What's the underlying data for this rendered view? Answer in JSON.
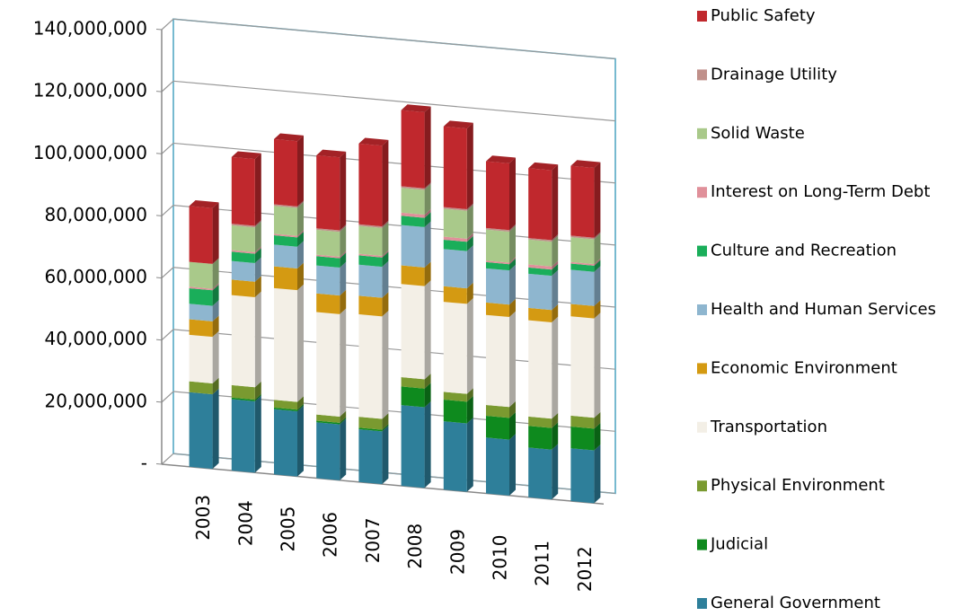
{
  "chart_data": {
    "type": "stacked_bar_3d",
    "categories": [
      "2003",
      "2004",
      "2005",
      "2006",
      "2007",
      "2008",
      "2009",
      "2010",
      "2011",
      "2012"
    ],
    "ylim": [
      0,
      140000000
    ],
    "yticks": [
      {
        "value": 0,
        "label": "-"
      },
      {
        "value": 20000000,
        "label": "20,000,000"
      },
      {
        "value": 40000000,
        "label": "40,000,000"
      },
      {
        "value": 60000000,
        "label": "60,000,000"
      },
      {
        "value": 80000000,
        "label": "80,000,000"
      },
      {
        "value": 100000000,
        "label": "100,000,000"
      },
      {
        "value": 120000000,
        "label": "120,000,000"
      },
      {
        "value": 140000000,
        "label": "140,000,000"
      }
    ],
    "grid": true,
    "legend": "right",
    "series": [
      {
        "name": "General Government",
        "color": "#2e7f9a",
        "values": [
          24000000,
          23000000,
          21000000,
          18000000,
          17000000,
          26000000,
          22000000,
          18000000,
          16000000,
          17000000
        ]
      },
      {
        "name": "Judicial",
        "color": "#0e8a1e",
        "values": [
          0,
          500000,
          500000,
          500000,
          500000,
          6000000,
          7000000,
          7000000,
          7000000,
          7000000
        ]
      },
      {
        "name": "Physical Environment",
        "color": "#7a9a30",
        "values": [
          3500000,
          4000000,
          2500000,
          2000000,
          3500000,
          3000000,
          2500000,
          3500000,
          3000000,
          3500000
        ]
      },
      {
        "name": "Transportation",
        "color": "#f3efe6",
        "values": [
          15000000,
          29000000,
          36000000,
          33000000,
          33000000,
          30000000,
          29000000,
          29000000,
          31000000,
          32000000
        ]
      },
      {
        "name": "Economic Environment",
        "color": "#d49a12",
        "values": [
          5000000,
          5000000,
          7000000,
          6000000,
          6000000,
          6000000,
          5000000,
          4000000,
          4000000,
          4000000
        ]
      },
      {
        "name": "Health and Human Services",
        "color": "#8eb6cf",
        "values": [
          5000000,
          6000000,
          7000000,
          9000000,
          10000000,
          13000000,
          12000000,
          11000000,
          11000000,
          11000000
        ]
      },
      {
        "name": "Culture and Recreation",
        "color": "#1aae5a",
        "values": [
          5000000,
          3000000,
          3000000,
          3000000,
          3000000,
          3000000,
          3000000,
          2000000,
          2000000,
          2000000
        ]
      },
      {
        "name": "Interest on Long-Term Debt",
        "color": "#e0909a",
        "values": [
          500000,
          500000,
          500000,
          500000,
          500000,
          1000000,
          1000000,
          500000,
          1000000,
          500000
        ]
      },
      {
        "name": "Solid Waste",
        "color": "#a9c98a",
        "values": [
          8000000,
          8000000,
          9000000,
          8000000,
          9000000,
          8000000,
          9000000,
          10000000,
          8000000,
          8000000
        ]
      },
      {
        "name": "Drainage Utility",
        "color": "#c0908a",
        "values": [
          0,
          500000,
          500000,
          500000,
          500000,
          500000,
          500000,
          500000,
          500000,
          500000
        ]
      },
      {
        "name": "Public Safety",
        "color": "#c0282d",
        "values": [
          18000000,
          21500000,
          21000000,
          23500000,
          26000000,
          24500000,
          26000000,
          21500000,
          22500000,
          22500000
        ]
      }
    ]
  }
}
